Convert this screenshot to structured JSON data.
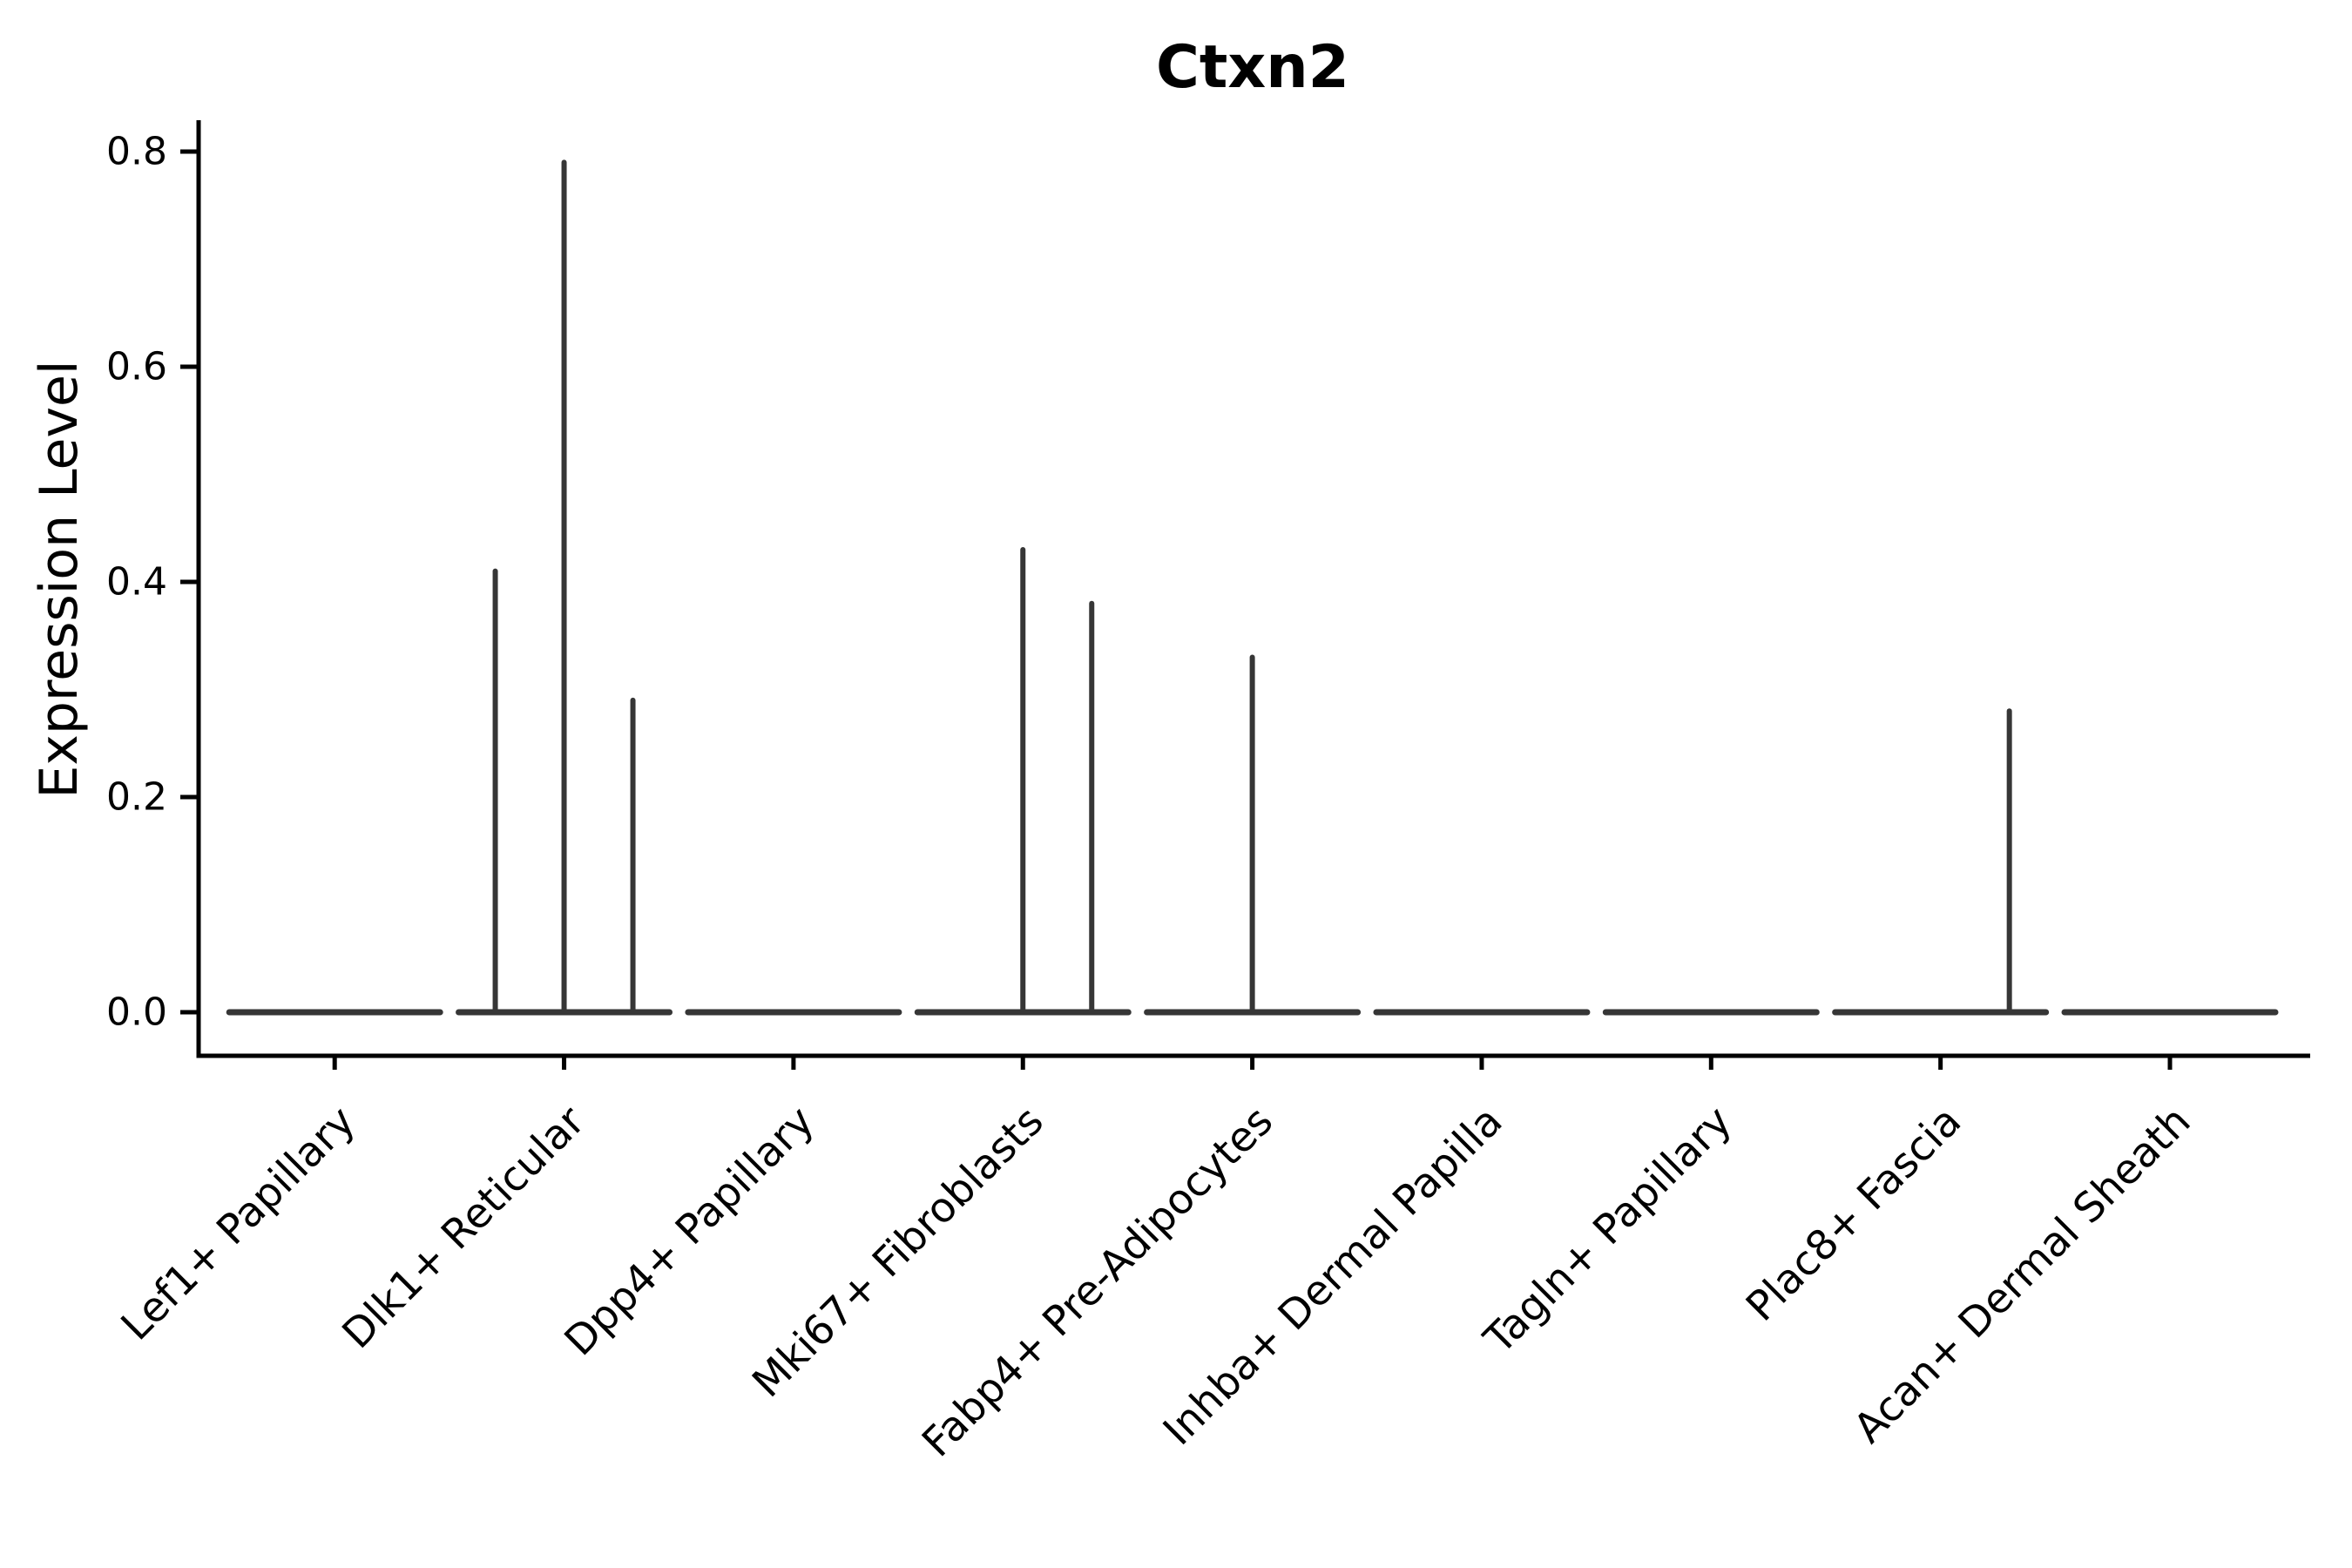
{
  "figure": {
    "background": "#ffffff",
    "axis_color": "#000000",
    "text_color": "#000000",
    "violin_color": "#363636"
  },
  "chart_data": {
    "type": "violin",
    "title": "Ctxn2",
    "xlabel": "",
    "ylabel": "Expression Level",
    "ylim": [
      -0.04,
      0.83
    ],
    "yticks": [
      0.0,
      0.2,
      0.4,
      0.6,
      0.8
    ],
    "ytick_labels": [
      "0.0",
      "0.2",
      "0.4",
      "0.6",
      "0.8"
    ],
    "grid": false,
    "legend": false,
    "categories": [
      "Lef1+ Papillary",
      "Dlk1+ Reticular",
      "Dpp4+ Papillary",
      "Mki67+ Fibroblasts",
      "Fabp4+ Pre-Adipocytes",
      "Inhba+ Dermal Papilla",
      "Tagln+ Papillary",
      "Plac8+ Fascia",
      "Acan+ Dermal Sheath"
    ],
    "violins": [
      {
        "category": "Lef1+ Papillary",
        "zero_density_line": true,
        "spikes": []
      },
      {
        "category": "Dlk1+ Reticular",
        "zero_density_line": true,
        "spikes": [
          {
            "offset": -0.3,
            "value": 0.41
          },
          {
            "offset": 0.0,
            "value": 0.79
          },
          {
            "offset": 0.3,
            "value": 0.29
          }
        ]
      },
      {
        "category": "Dpp4+ Papillary",
        "zero_density_line": true,
        "spikes": []
      },
      {
        "category": "Mki67+ Fibroblasts",
        "zero_density_line": true,
        "spikes": [
          {
            "offset": 0.0,
            "value": 0.43
          },
          {
            "offset": 0.3,
            "value": 0.38
          }
        ]
      },
      {
        "category": "Fabp4+ Pre-Adipocytes",
        "zero_density_line": true,
        "spikes": [
          {
            "offset": 0.0,
            "value": 0.33
          }
        ]
      },
      {
        "category": "Inhba+ Dermal Papilla",
        "zero_density_line": true,
        "spikes": []
      },
      {
        "category": "Tagln+ Papillary",
        "zero_density_line": true,
        "spikes": []
      },
      {
        "category": "Plac8+ Fascia",
        "zero_density_line": true,
        "spikes": [
          {
            "offset": 0.3,
            "value": 0.28
          }
        ]
      },
      {
        "category": "Acan+ Dermal Sheath",
        "zero_density_line": true,
        "spikes": []
      }
    ]
  }
}
